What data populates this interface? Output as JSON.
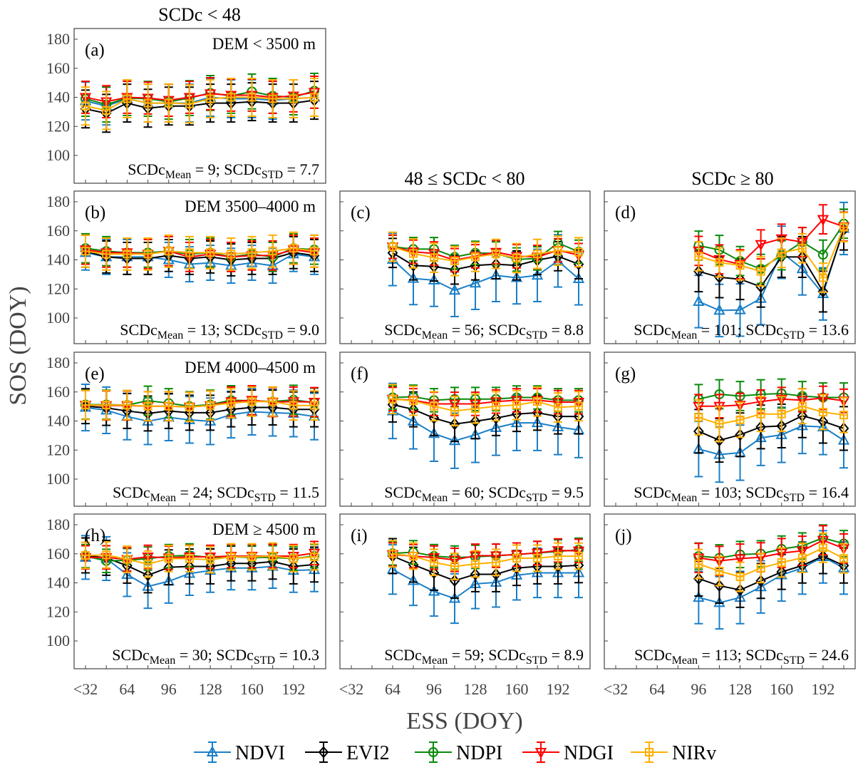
{
  "chart_data": {
    "type": "line",
    "xlabel": "ESS (DOY)",
    "ylabel": "SOS (DOY)",
    "ylim": [
      100,
      180
    ],
    "yticks": [
      100,
      120,
      140,
      160,
      180
    ],
    "x": [
      32,
      48,
      64,
      80,
      96,
      112,
      128,
      144,
      160,
      176,
      192,
      208
    ],
    "xticks": [
      {
        "value": 32,
        "label": "<32"
      },
      {
        "value": 64,
        "label": "64"
      },
      {
        "value": 96,
        "label": "96"
      },
      {
        "value": 128,
        "label": "128"
      },
      {
        "value": 160,
        "label": "160"
      },
      {
        "value": 192,
        "label": "192"
      }
    ],
    "column_titles": [
      "SCDc < 48",
      "48 ≤ SCDc < 80",
      "SCDc ≥ 80"
    ],
    "labels": {
      "scdc": "SCDc",
      "mean_sub": "Mean",
      "std_sub": "STD",
      "eq": " = ",
      "sep": "; "
    },
    "series_styles": [
      {
        "name": "NDVI",
        "color": "#1a7fc7",
        "marker": "triangle-up"
      },
      {
        "name": "EVI2",
        "color": "#000000",
        "marker": "diamond"
      },
      {
        "name": "NDPI",
        "color": "#0a8a0a",
        "marker": "circle"
      },
      {
        "name": "NDGI",
        "color": "#ff0000",
        "marker": "triangle-down"
      },
      {
        "name": "NIRv",
        "color": "#ffb000",
        "marker": "square-cross"
      }
    ],
    "legend_placement": "bottom",
    "panels": [
      {
        "id": "a",
        "letter": "(a)",
        "dem": "DEM < 3500 m",
        "scdc_mean": "9",
        "scdc_std": "7.7",
        "x_start": 32,
        "series": {
          "NDVI": {
            "values": [
              137.5,
              134,
              139,
              136,
              136,
              136,
              140,
              139,
              139,
              138,
              139,
              140
            ],
            "err": 13
          },
          "EVI2": {
            "values": [
              132,
              129,
              136,
              132.5,
              134,
              134,
              136,
              136,
              137,
              136,
              136,
              138
            ],
            "err": 13
          },
          "NDPI": {
            "values": [
              139,
              135,
              139.5,
              139,
              137,
              139.5,
              143,
              141,
              144,
              141,
              140,
              144.5
            ],
            "err": 12
          },
          "NDGI": {
            "values": [
              140,
              137,
              140,
              139.5,
              138,
              140,
              142.5,
              141.5,
              141.5,
              140,
              141,
              143.5
            ],
            "err": 11
          },
          "NIRv": {
            "values": [
              134,
              131,
              139,
              136,
              136,
              135.5,
              139,
              140,
              140,
              139,
              139,
              140
            ],
            "err": 13
          }
        }
      },
      {
        "id": "b",
        "letter": "(b)",
        "dem": "DEM 3500–4000 m",
        "scdc_mean": "13",
        "scdc_std": "9.0",
        "x_start": 32,
        "series": {
          "NDVI": {
            "values": [
              145,
              142,
              142,
              142,
              140,
              137,
              138,
              136,
              138,
              136,
              144,
              142
            ],
            "err": 12
          },
          "EVI2": {
            "values": [
              146,
              142,
              141,
              141,
              143,
              141,
              142,
              140,
              141,
              141,
              145,
              143
            ],
            "err": 11
          },
          "NDPI": {
            "values": [
              148,
              146,
              145,
              145,
              146,
              144,
              145,
              142,
              144,
              142,
              148,
              147
            ],
            "err": 10
          },
          "NDGI": {
            "values": [
              147,
              145,
              145,
              144,
              146,
              142,
              144,
              142,
              143,
              143,
              147,
              145
            ],
            "err": 10
          },
          "NIRv": {
            "values": [
              146,
              144,
              144,
              144,
              146,
              145,
              145,
              144,
              145,
              146,
              148,
              146
            ],
            "err": 11
          }
        }
      },
      {
        "id": "c",
        "letter": "(c)",
        "dem": "",
        "scdc_mean": "56",
        "scdc_std": "8.8",
        "x_start": 64,
        "series": {
          "NDVI": {
            "values": [
              140.3,
              127.2,
              126,
              119,
              123.9,
              129.3,
              127.7,
              129.3,
              139.3,
              127
            ],
            "err": 18
          },
          "EVI2": {
            "values": [
              144.8,
              136.2,
              135.4,
              133.3,
              136.2,
              137,
              136.2,
              139.8,
              142.5,
              137
            ],
            "err": 10
          },
          "NDPI": {
            "values": [
              149,
              147.4,
              147.4,
              142,
              144.8,
              144.4,
              140.3,
              141,
              151.6,
              145.6
            ],
            "err": 8
          },
          "NDGI": {
            "values": [
              149,
              145.6,
              144.4,
              139.8,
              142.5,
              145.3,
              142.5,
              142,
              146.6,
              143.3
            ],
            "err": 8
          },
          "NIRv": {
            "values": [
              149,
              144.4,
              141.5,
              139.2,
              142,
              144.1,
              141.2,
              144.1,
              146.4,
              145.3
            ],
            "err": 10
          }
        }
      },
      {
        "id": "d",
        "letter": "(d)",
        "dem": "",
        "scdc_mean": "101",
        "scdc_std": "13.6",
        "x_start": 96,
        "series": {
          "NDVI": {
            "values": [
              111.3,
              105.2,
              105.5,
              113.4,
              145.2,
              133.8,
              116.6,
              161.6
            ],
            "err": 18
          },
          "EVI2": {
            "values": [
              132.1,
              128,
              126.7,
              121.5,
              142,
              142,
              118.2,
              160.8
            ],
            "err": 14
          },
          "NDPI": {
            "values": [
              149.8,
              146.9,
              139.2,
              133.8,
              143.1,
              152.3,
              143.6,
              164.9
            ],
            "err": 10
          },
          "NDGI": {
            "values": [
              146.2,
              140.3,
              137,
              150.7,
              154.6,
              152.3,
              167.9,
              162.9
            ],
            "err": 10
          },
          "NIRv": {
            "values": [
              142.5,
              138.2,
              136.2,
              132.1,
              144.8,
              148,
              127.7,
              162.5
            ],
            "err": 10
          }
        }
      },
      {
        "id": "e",
        "letter": "(e)",
        "dem": "DEM 4000–4500 m",
        "scdc_mean": "24",
        "scdc_std": "11.5",
        "x_start": 32,
        "series": {
          "NDVI": {
            "values": [
              149.3,
              147.4,
              143.1,
              139.8,
              142.5,
              140.8,
              139.8,
              144.4,
              146.4,
              145.7,
              145.2,
              143.1
            ],
            "err": 16
          },
          "EVI2": {
            "values": [
              150.2,
              149,
              146.9,
              145.2,
              146.9,
              145.7,
              145.7,
              148,
              149.3,
              149.3,
              148,
              148
            ],
            "err": 12
          },
          "NDPI": {
            "values": [
              151.3,
              151.3,
              151,
              154,
              152.3,
              150.2,
              151.3,
              154.3,
              154,
              153.4,
              154.6,
              152.6
            ],
            "err": 10
          },
          "NDGI": {
            "values": [
              151,
              150.7,
              150.7,
              150.2,
              150.2,
              149.7,
              150.7,
              153.4,
              154.3,
              153,
              153.4,
              153
            ],
            "err": 10
          },
          "NIRv": {
            "values": [
              151,
              151,
              151,
              150.2,
              150.2,
              149.7,
              150.7,
              152.3,
              153.4,
              153.4,
              150.7,
              150.7
            ],
            "err": 10
          }
        }
      },
      {
        "id": "f",
        "letter": "(f)",
        "dem": "",
        "scdc_mean": "60",
        "scdc_std": "9.5",
        "x_start": 64,
        "series": {
          "NDVI": {
            "values": [
              146.9,
              139.8,
              131.3,
              126.4,
              130.5,
              135.4,
              138.7,
              138.7,
              135.9,
              133.8
            ],
            "err": 19
          },
          "EVI2": {
            "values": [
              151.3,
              148,
              142,
              137.9,
              139.8,
              142,
              144.8,
              145.7,
              143.1,
              143.1
            ],
            "err": 12
          },
          "NDPI": {
            "values": [
              156.2,
              156.7,
              154.3,
              155.1,
              155.1,
              155.1,
              156.2,
              156.2,
              154.3,
              154.3
            ],
            "err": 8
          },
          "NDGI": {
            "values": [
              155.1,
              154.3,
              151.8,
              151.8,
              151.8,
              153.4,
              154.3,
              154.3,
              153,
              153
            ],
            "err": 8
          },
          "NIRv": {
            "values": [
              155.1,
              153.9,
              150.2,
              146.9,
              148.5,
              150.2,
              151,
              153.4,
              149.3,
              150.2
            ],
            "err": 10
          }
        }
      },
      {
        "id": "g",
        "letter": "(g)",
        "dem": "",
        "scdc_mean": "103",
        "scdc_std": "16.4",
        "x_start": 96,
        "series": {
          "NDVI": {
            "values": [
              120.7,
              116.9,
              118.2,
              128.4,
              130.5,
              136.6,
              135.9,
              126.7
            ],
            "err": 19
          },
          "EVI2": {
            "values": [
              132.9,
              126.7,
              130.5,
              135.9,
              136.6,
              143.6,
              139.8,
              134.9
            ],
            "err": 15
          },
          "NDPI": {
            "values": [
              155.1,
              158.4,
              157.2,
              158.4,
              158.9,
              157.2,
              156.2,
              156.2
            ],
            "err": 10
          },
          "NDGI": {
            "values": [
              150.2,
              150.2,
              151,
              153.4,
              155.1,
              154.3,
              155.9,
              153.9
            ],
            "err": 8
          },
          "NIRv": {
            "values": [
              142.5,
              137.9,
              140.8,
              144.8,
              144.8,
              150.2,
              146.1,
              144.1
            ],
            "err": 12
          }
        }
      },
      {
        "id": "h",
        "letter": "(h)",
        "dem": "DEM ≥ 4500 m",
        "scdc_mean": "30",
        "scdc_std": "10.3",
        "x_start": 32,
        "series": {
          "NDVI": {
            "values": [
              157.5,
              156.7,
              145.7,
              137.5,
              141.1,
              146.4,
              148.5,
              150.2,
              150.2,
              151.3,
              148.5,
              149
            ],
            "err": 15
          },
          "EVI2": {
            "values": [
              158.9,
              157.2,
              151.8,
              145.2,
              150.7,
              151.3,
              151.3,
              153.4,
              153.4,
              154.6,
              151.3,
              152.6
            ],
            "err": 12
          },
          "NDPI": {
            "values": [
              158.4,
              155.1,
              155.6,
              156.7,
              158.4,
              158.9,
              157.5,
              157.9,
              157.5,
              157.5,
              156.7,
              158.4
            ],
            "err": 8
          },
          "NDGI": {
            "values": [
              157.5,
              157.5,
              156.2,
              157.9,
              157.2,
              157.9,
              157.9,
              158.4,
              158.4,
              158.4,
              158.4,
              160.5
            ],
            "err": 8
          },
          "NIRv": {
            "values": [
              158.9,
              159.2,
              156.2,
              152.9,
              156.7,
              156.7,
              155.9,
              157.9,
              157.9,
              158.4,
              156.7,
              157.9
            ],
            "err": 9
          }
        }
      },
      {
        "id": "i",
        "letter": "(i)",
        "dem": "",
        "scdc_mean": "59",
        "scdc_std": "8.9",
        "x_start": 64,
        "series": {
          "NDVI": {
            "values": [
              149.2,
              141.5,
              134.1,
              129.2,
              139.3,
              140.3,
              145.2,
              146.9,
              146.9,
              146.9
            ],
            "err": 17
          },
          "EVI2": {
            "values": [
              158.4,
              152.5,
              146.9,
              141.5,
              145.9,
              145.9,
              150.2,
              151.3,
              151.3,
              152.1
            ],
            "err": 12
          },
          "NDPI": {
            "values": [
              160.3,
              161.1,
              158.4,
              157.4,
              157.9,
              158.7,
              159.5,
              160.6,
              161.6,
              162.8
            ],
            "err": 8
          },
          "NDGI": {
            "values": [
              159.5,
              158.4,
              157.4,
              155.8,
              158.7,
              158.7,
              159.5,
              160.6,
              162.3,
              162
            ],
            "err": 8
          },
          "NIRv": {
            "values": [
              160,
              158.4,
              154.1,
              151.3,
              153,
              154.1,
              157,
              157,
              158.4,
              158.4
            ],
            "err": 9
          }
        }
      },
      {
        "id": "j",
        "letter": "(j)",
        "dem": "",
        "scdc_mean": "113",
        "scdc_std": "24.6",
        "x_start": 96,
        "series": {
          "NDVI": {
            "values": [
              129.9,
              126.3,
              129.9,
              137.2,
              145.4,
              150.2,
              157.9,
              150.2
            ],
            "err": 18
          },
          "EVI2": {
            "values": [
              142.9,
              138,
              135.1,
              141.3,
              147.5,
              151.9,
              158.4,
              151.9
            ],
            "err": 12
          },
          "NDPI": {
            "values": [
              158.4,
              157.2,
              159.5,
              160,
              163.3,
              165.4,
              170.9,
              167
            ],
            "err": 9
          },
          "NDGI": {
            "values": [
              157.2,
              155.1,
              156.7,
              157.6,
              160.5,
              162.1,
              169.3,
              163.7
            ],
            "err": 10
          },
          "NIRv": {
            "values": [
              153,
              148.1,
              144.2,
              150.2,
              154,
              157.2,
              164.1,
              156.8
            ],
            "err": 10
          }
        }
      }
    ]
  }
}
